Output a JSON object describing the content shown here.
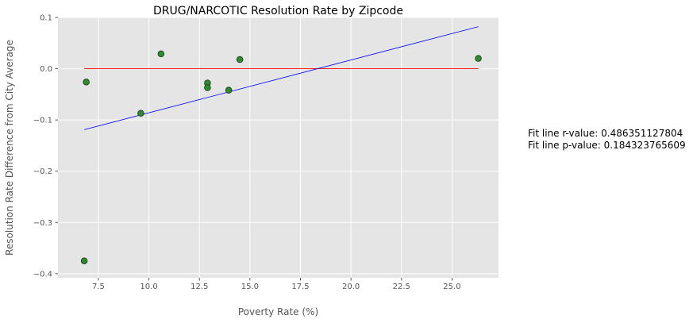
{
  "chart_data": {
    "type": "scatter",
    "title": "DRUG/NARCOTIC Resolution Rate by Zipcode",
    "xlabel": "Poverty Rate (%)",
    "ylabel": "Resolution Rate Difference from City Average",
    "xlim": [
      5.5,
      27.3
    ],
    "ylim": [
      -0.408,
      0.1
    ],
    "x_ticks": [
      7.5,
      10.0,
      12.5,
      15.0,
      17.5,
      20.0,
      22.5,
      25.0
    ],
    "x_tick_labels": [
      "7.5",
      "10.0",
      "12.5",
      "15.0",
      "17.5",
      "20.0",
      "22.5",
      "25.0"
    ],
    "y_ticks": [
      0.1,
      0.0,
      -0.1,
      -0.2,
      -0.3,
      -0.4
    ],
    "y_tick_labels": [
      "0.1",
      "0.0",
      "−0.1",
      "−0.2",
      "−0.3",
      "−0.4"
    ],
    "grid": true,
    "points": [
      {
        "x": 6.8,
        "y": -0.375
      },
      {
        "x": 6.9,
        "y": -0.026
      },
      {
        "x": 9.6,
        "y": -0.087
      },
      {
        "x": 10.6,
        "y": 0.029
      },
      {
        "x": 12.9,
        "y": -0.028
      },
      {
        "x": 12.9,
        "y": -0.037
      },
      {
        "x": 13.95,
        "y": -0.042
      },
      {
        "x": 14.5,
        "y": 0.018
      },
      {
        "x": 26.3,
        "y": 0.02
      }
    ],
    "fit_line": {
      "x": [
        6.8,
        26.3
      ],
      "y": [
        -0.119,
        0.082
      ]
    },
    "mean_line": {
      "x": [
        6.8,
        26.3
      ],
      "y": [
        0.0,
        0.0
      ]
    },
    "colors": {
      "background": "#e5e5e5",
      "grid": "#ffffff",
      "points": "#2e8b2e",
      "point_edge": "#1e3d1e",
      "fit_line": "#0000ff",
      "mean_line": "#ff0000"
    }
  },
  "stats": {
    "r_value": "Fit line r-value: 0.486351127804",
    "p_value": "Fit line p-value: 0.184323765609"
  }
}
